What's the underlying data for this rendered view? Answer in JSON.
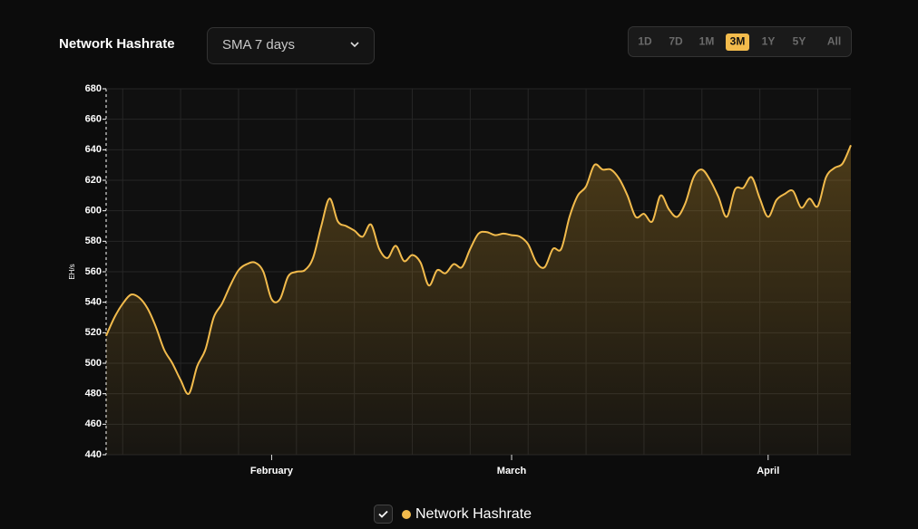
{
  "chart_data": {
    "type": "line",
    "title": "Network Hashrate",
    "dropdown": "SMA 7 days",
    "ranges": [
      "1D",
      "7D",
      "1M",
      "3M",
      "1Y",
      "5Y",
      "All"
    ],
    "active_range": "3M",
    "ylabel": "EH/s",
    "categories": [
      null,
      null,
      null,
      null,
      null,
      null,
      null,
      null,
      null,
      null,
      null,
      null,
      null,
      null,
      null,
      null,
      null,
      null,
      null,
      null,
      "February",
      null,
      null,
      null,
      null,
      null,
      null,
      null,
      null,
      null,
      null,
      null,
      null,
      null,
      null,
      null,
      null,
      null,
      null,
      null,
      null,
      null,
      null,
      null,
      null,
      null,
      null,
      null,
      null,
      "March",
      null,
      null,
      null,
      null,
      null,
      null,
      null,
      null,
      null,
      null,
      null,
      null,
      null,
      null,
      null,
      null,
      null,
      null,
      null,
      null,
      null,
      null,
      null,
      null,
      null,
      null,
      null,
      null,
      null,
      null,
      "April",
      null,
      null,
      null,
      null,
      null,
      null,
      null,
      null,
      null,
      null
    ],
    "series": [
      {
        "name": "Network Hashrate",
        "color": "#f2bb4c",
        "values": [
          518,
          530,
          539,
          545,
          543,
          536,
          524,
          509,
          500,
          489,
          480,
          498,
          509,
          530,
          539,
          551,
          561,
          565,
          566,
          560,
          542,
          542,
          557,
          560,
          561,
          569,
          590,
          608,
          593,
          590,
          587,
          583,
          591,
          575,
          569,
          577,
          567,
          571,
          566,
          551,
          561,
          559,
          565,
          563,
          575,
          585,
          586,
          584,
          585,
          584,
          583,
          578,
          566,
          563,
          575,
          575,
          596,
          610,
          616,
          630,
          627,
          627,
          621,
          610,
          596,
          598,
          593,
          610,
          601,
          596,
          605,
          622,
          627,
          620,
          609,
          596,
          614,
          615,
          622,
          608,
          596,
          607,
          611,
          613,
          602,
          608,
          603,
          622,
          628,
          631,
          643
        ]
      }
    ],
    "ylim": [
      440,
      680
    ],
    "yticks": [
      440,
      460,
      480,
      500,
      520,
      540,
      560,
      580,
      600,
      620,
      640,
      660,
      680
    ],
    "grid": true
  }
}
